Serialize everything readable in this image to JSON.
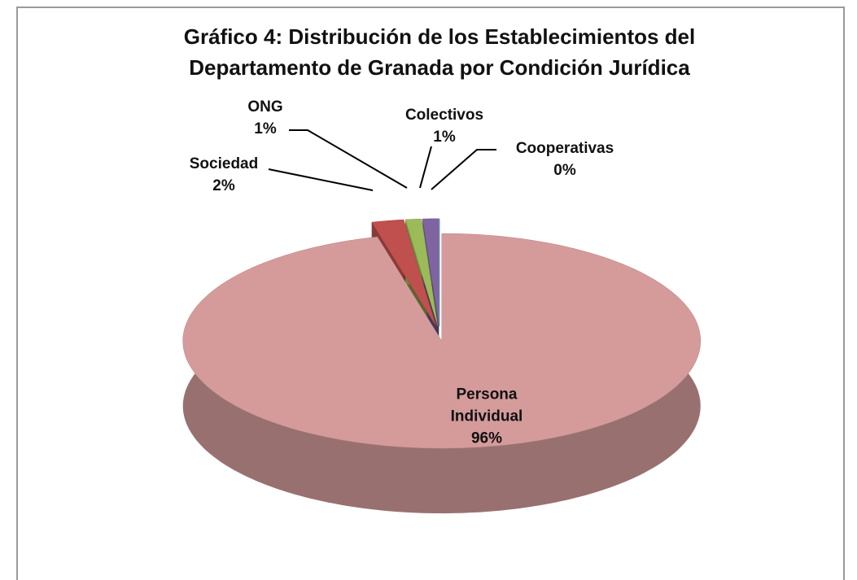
{
  "chart_data": {
    "type": "pie",
    "title": "Gráfico 4: Distribución de los Establecimientos del Departamento de Granada por Condición Jurídica",
    "categories": [
      "Persona Individual",
      "Sociedad",
      "ONG",
      "Colectivos",
      "Cooperativas"
    ],
    "values": [
      96,
      2,
      1,
      1,
      0
    ],
    "value_labels": [
      "96%",
      "2%",
      "1%",
      "1%",
      "0%"
    ],
    "colors": [
      "#d59b9b",
      "#c0504d",
      "#9bbb59",
      "#8064a2",
      "#4bacc6"
    ]
  }
}
